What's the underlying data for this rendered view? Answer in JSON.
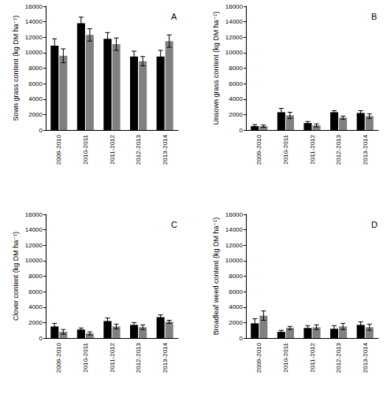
{
  "chart_data": [
    {
      "type": "bar",
      "title": "A",
      "y_label": "Sown grass content (kg DM ha⁻¹)",
      "categories": [
        "2009-2010",
        "2010-2011",
        "2011-2012",
        "2012-2013",
        "2013-2014"
      ],
      "series": [
        {
          "color": "#000000",
          "values": [
            10900,
            13800,
            11800,
            9500,
            9500
          ],
          "errors": [
            900,
            800,
            800,
            700,
            800
          ]
        },
        {
          "color": "#808080",
          "values": [
            9600,
            12300,
            11100,
            8900,
            11500
          ],
          "errors": [
            900,
            800,
            800,
            600,
            800
          ]
        }
      ],
      "ylim": [
        0,
        16000
      ],
      "yticks": [
        0,
        2000,
        4000,
        6000,
        8000,
        10000,
        12000,
        14000,
        16000
      ],
      "grid": false
    },
    {
      "type": "bar",
      "title": "B",
      "y_label": "Unsown grass content (kg DM ha⁻¹)",
      "categories": [
        "2009-2010",
        "2010-2011",
        "2011-2012",
        "2012-2013",
        "2013-2014"
      ],
      "series": [
        {
          "color": "#000000",
          "values": [
            500,
            2300,
            900,
            2300,
            2200
          ],
          "errors": [
            200,
            500,
            200,
            200,
            300
          ]
        },
        {
          "color": "#808080",
          "values": [
            500,
            1900,
            600,
            1600,
            1800
          ],
          "errors": [
            150,
            400,
            200,
            200,
            300
          ]
        }
      ],
      "ylim": [
        0,
        16000
      ],
      "yticks": [
        0,
        2000,
        4000,
        6000,
        8000,
        10000,
        12000,
        14000,
        16000
      ],
      "grid": false
    },
    {
      "type": "bar",
      "title": "C",
      "y_label": "Clover content (kg DM ha⁻¹)",
      "categories": [
        "2009-2010",
        "2010-2011",
        "2011-2012",
        "2012-2013",
        "2013-2014"
      ],
      "series": [
        {
          "color": "#000000",
          "values": [
            1500,
            1100,
            2200,
            1700,
            2700
          ],
          "errors": [
            400,
            200,
            400,
            300,
            300
          ]
        },
        {
          "color": "#808080",
          "values": [
            800,
            600,
            1500,
            1400,
            2100
          ],
          "errors": [
            300,
            200,
            300,
            300,
            200
          ]
        }
      ],
      "ylim": [
        0,
        16000
      ],
      "yticks": [
        0,
        2000,
        4000,
        6000,
        8000,
        10000,
        12000,
        14000,
        16000
      ],
      "grid": false
    },
    {
      "type": "bar",
      "title": "D",
      "y_label": "Broadleaf weed content (kg DM ha⁻¹)",
      "categories": [
        "2009-2010",
        "2010-2011",
        "2011-2012",
        "2012-2013",
        "2013-2014"
      ],
      "series": [
        {
          "color": "#000000",
          "values": [
            1900,
            800,
            1300,
            1200,
            1700
          ],
          "errors": [
            600,
            200,
            300,
            400,
            400
          ]
        },
        {
          "color": "#808080",
          "values": [
            2900,
            1300,
            1400,
            1500,
            1400
          ],
          "errors": [
            600,
            200,
            300,
            400,
            400
          ]
        }
      ],
      "ylim": [
        0,
        16000
      ],
      "yticks": [
        0,
        2000,
        4000,
        6000,
        8000,
        10000,
        12000,
        14000,
        16000
      ],
      "grid": false
    }
  ]
}
